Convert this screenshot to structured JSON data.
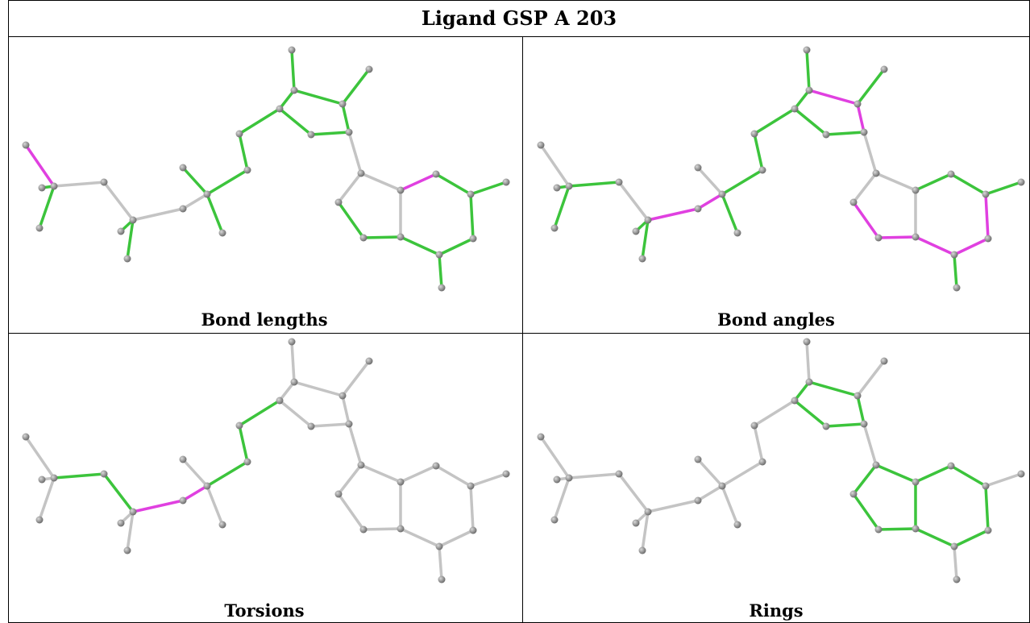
{
  "header": {
    "title": "Ligand GSP A 203"
  },
  "panels": [
    {
      "caption": "Bond lengths"
    },
    {
      "caption": "Bond angles"
    },
    {
      "caption": "Torsions"
    },
    {
      "caption": "Rings"
    }
  ]
}
